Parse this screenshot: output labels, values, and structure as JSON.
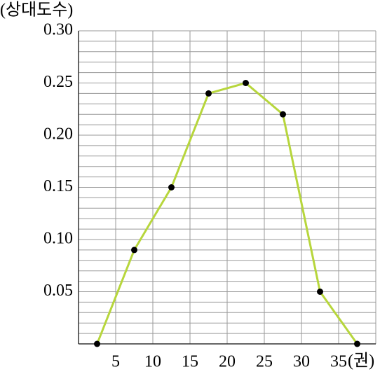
{
  "chart_data": {
    "type": "line",
    "y_label": "(상대도수)",
    "x_label": "(권)",
    "x": [
      2.5,
      7.5,
      12.5,
      17.5,
      22.5,
      27.5,
      32.5,
      37.5
    ],
    "values": [
      0,
      0.09,
      0.15,
      0.24,
      0.25,
      0.22,
      0.05,
      0
    ],
    "color": "#b7d63c",
    "marker_color": "#000000",
    "xlim": [
      0,
      40
    ],
    "xticks": [
      5,
      10,
      15,
      20,
      25,
      30,
      35
    ],
    "ylim": [
      0,
      0.3
    ],
    "yticks": [
      0.05,
      {
        "value": 0.1,
        "label": "0.10"
      },
      0.15,
      {
        "value": 0.2,
        "label": "0.20"
      },
      0.25,
      {
        "value": 0.3,
        "label": "0.30"
      }
    ],
    "minor_yticks": [
      0.01,
      0.02,
      0.03,
      0.04,
      0.06,
      0.07,
      0.08,
      0.09,
      0.11,
      0.12,
      0.13,
      0.14,
      0.16,
      0.17,
      0.18,
      0.19,
      0.21,
      0.22,
      0.23,
      0.24,
      0.26,
      0.27,
      0.28,
      0.29
    ],
    "grid": true
  }
}
